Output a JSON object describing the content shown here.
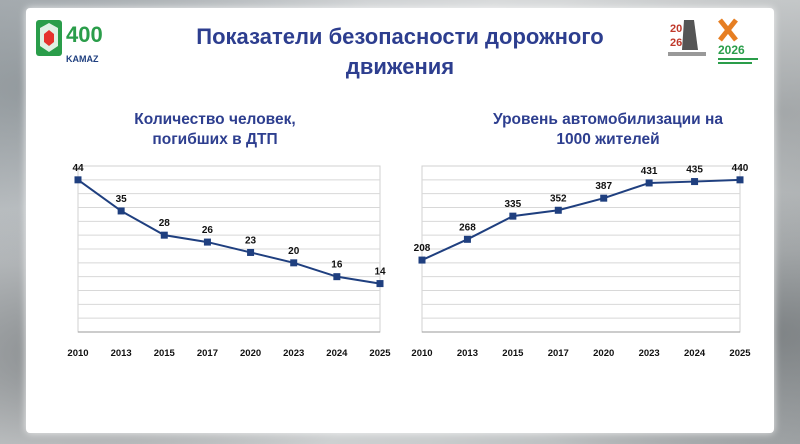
{
  "slide": {
    "title": "Показатели безопасности дорожного движения"
  },
  "logos": {
    "left": {
      "brand": "KAMAZ",
      "number": "400"
    },
    "right": {
      "year": "2026",
      "years_top": "20",
      "years_bottom": "26"
    }
  },
  "chart_data": [
    {
      "type": "line",
      "title": "Количество человек, погибших в ДТП",
      "categories": [
        "2010",
        "2013",
        "2015",
        "2017",
        "2020",
        "2023",
        "2024",
        "2025"
      ],
      "series": [
        {
          "values": [
            44,
            35,
            28,
            26,
            23,
            20,
            16,
            14
          ]
        }
      ],
      "ylim": [
        0,
        48
      ],
      "grid": true,
      "legend": "none",
      "color": "#1f3f7f"
    },
    {
      "type": "line",
      "title": "Уровень автомобилизации на 1000 жителей",
      "categories": [
        "2010",
        "2013",
        "2015",
        "2017",
        "2020",
        "2023",
        "2024",
        "2025"
      ],
      "series": [
        {
          "values": [
            208,
            268,
            335,
            352,
            387,
            431,
            435,
            440
          ]
        }
      ],
      "ylim": [
        0,
        480
      ],
      "grid": true,
      "legend": "none",
      "color": "#1f3f7f"
    }
  ]
}
